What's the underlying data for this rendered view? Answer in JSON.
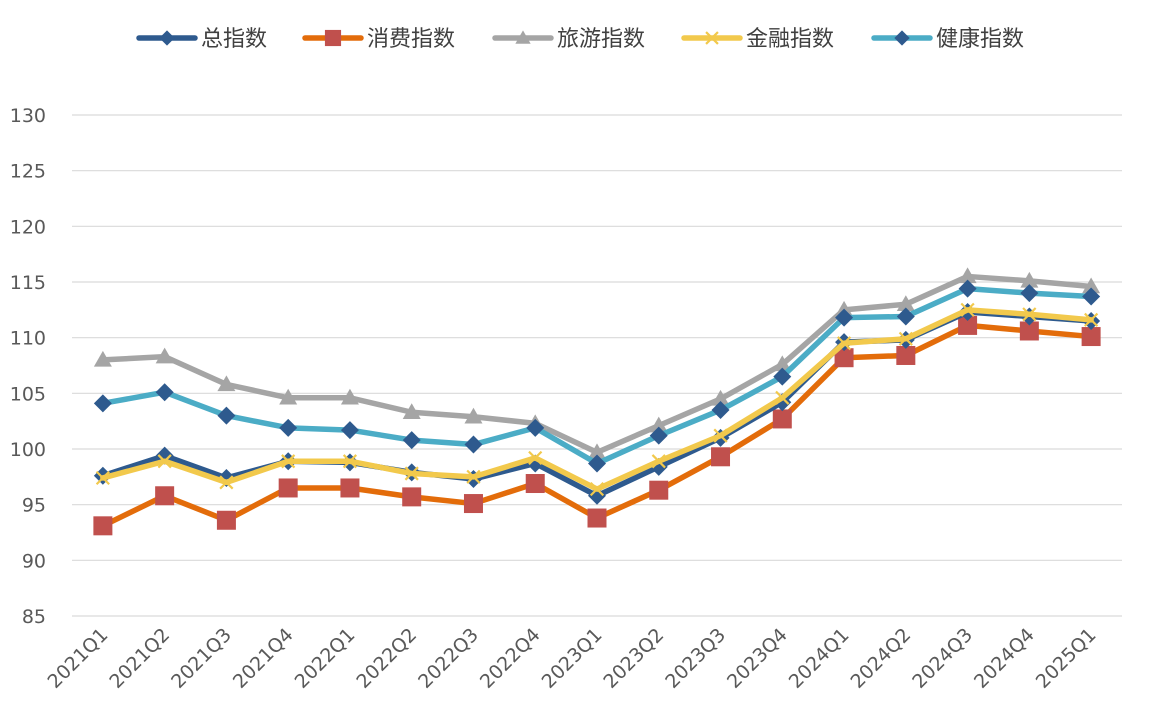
{
  "chart_data": {
    "type": "line",
    "title": "",
    "xlabel": "",
    "ylabel": "",
    "ylim": [
      85,
      130
    ],
    "yticks": [
      85,
      90,
      95,
      100,
      105,
      110,
      115,
      120,
      125,
      130
    ],
    "grid": true,
    "legend": "top",
    "categories": [
      "2021Q1",
      "2021Q2",
      "2021Q3",
      "2021Q4",
      "2022Q1",
      "2022Q2",
      "2022Q3",
      "2022Q4",
      "2023Q1",
      "2023Q2",
      "2023Q3",
      "2023Q4",
      "2024Q1",
      "2024Q2",
      "2024Q3",
      "2024Q4",
      "2025Q1"
    ],
    "series": [
      {
        "name": "总指数",
        "color": "#2E5A8E",
        "marker": "diamond",
        "values": [
          97.6,
          99.4,
          97.4,
          98.9,
          98.8,
          97.9,
          97.3,
          98.7,
          95.8,
          98.4,
          101.0,
          104.2,
          109.6,
          109.8,
          112.3,
          111.9,
          111.5
        ]
      },
      {
        "name": "消费指数",
        "color": "#E36C0A",
        "marker": "square",
        "markerColor": "#C0504D",
        "values": [
          93.1,
          95.8,
          93.6,
          96.5,
          96.5,
          95.7,
          95.1,
          96.9,
          93.8,
          96.3,
          99.3,
          102.7,
          108.2,
          108.4,
          111.1,
          110.6,
          110.1
        ]
      },
      {
        "name": "旅游指数",
        "color": "#A5A5A5",
        "marker": "triangle",
        "values": [
          108.0,
          108.3,
          105.8,
          104.6,
          104.6,
          103.3,
          102.9,
          102.3,
          99.7,
          102.1,
          104.5,
          107.6,
          112.5,
          113.0,
          115.5,
          115.1,
          114.6
        ]
      },
      {
        "name": "金融指数",
        "color": "#F2C94C",
        "marker": "x",
        "values": [
          97.4,
          98.9,
          97.0,
          98.9,
          98.9,
          97.8,
          97.5,
          99.2,
          96.4,
          98.9,
          101.2,
          104.6,
          109.5,
          109.9,
          112.5,
          112.1,
          111.6
        ]
      },
      {
        "name": "健康指数",
        "color": "#4BACC6",
        "marker": "diamond",
        "markerColor": "#2E5A8E",
        "values": [
          104.1,
          105.1,
          103.0,
          101.9,
          101.7,
          100.8,
          100.4,
          101.9,
          98.7,
          101.2,
          103.5,
          106.5,
          111.8,
          111.9,
          114.4,
          114.0,
          113.7
        ]
      }
    ]
  }
}
